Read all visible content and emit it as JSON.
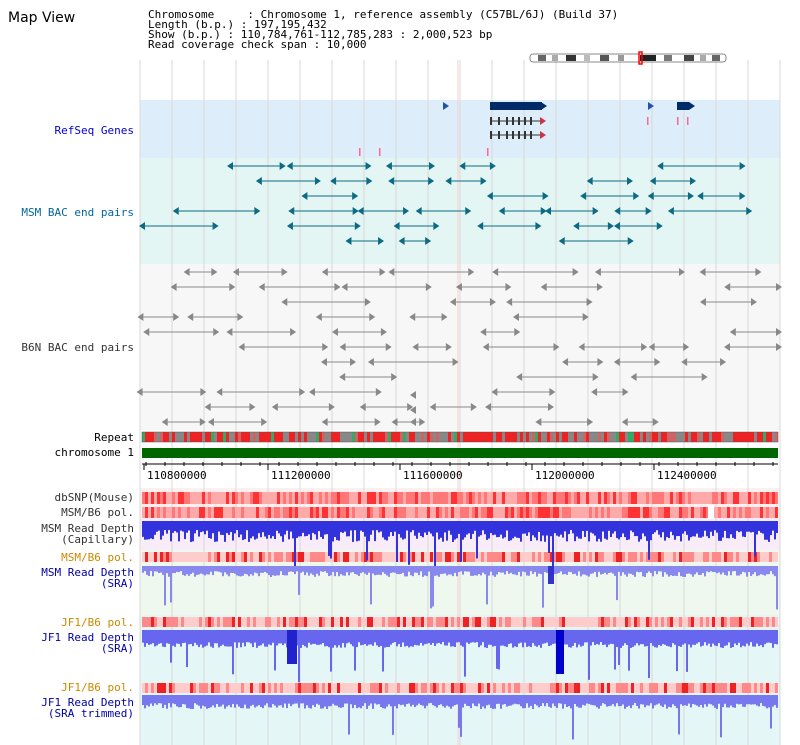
{
  "page": {
    "title": "Map View",
    "info": {
      "chromosome": "Chromosome     : Chromosome 1, reference assembly (C57BL/6J) (Build 37)",
      "length": "Length (b.p.) : 197,195,432",
      "show": "Show (b.p.) : 110,784,761-112,785,283 : 2,000,523 bp",
      "coverage": "Read coverage check span : 10,000"
    }
  },
  "tracks": {
    "refseq": {
      "label": "RefSeq Genes",
      "color": "#0000cc"
    },
    "msm_bac": {
      "label": "MSM BAC end pairs",
      "color": "#006699"
    },
    "b6n_bac": {
      "label": "B6N BAC end pairs",
      "color": "#333333"
    },
    "repeat": {
      "label": "Repeat",
      "color": "#000000"
    },
    "chromosome": {
      "label": "chromosome 1",
      "color": "#000000"
    },
    "dbsnp": {
      "label": "dbSNP(Mouse)",
      "color": "#333333"
    },
    "msm_b6_pol_1": {
      "label": "MSM/B6 pol.",
      "color": "#333333"
    },
    "msm_depth_cap": {
      "label1": "MSM Read Depth",
      "label2": "(Capillary)",
      "color": "#333333"
    },
    "msm_b6_pol_2": {
      "label": "MSM/B6 pol.",
      "color": "#cc8800"
    },
    "msm_depth_sra": {
      "label1": "MSM Read Depth",
      "label2": "(SRA)",
      "color": "#0000aa"
    },
    "jf1_b6_pol_1": {
      "label": "JF1/B6 pol.",
      "color": "#cc8800"
    },
    "jf1_depth_sra": {
      "label1": "JF1 Read Depth",
      "label2": "(SRA)",
      "color": "#0000aa"
    },
    "jf1_b6_pol_2": {
      "label": "JF1/B6 pol.",
      "color": "#cc8800"
    },
    "jf1_depth_trim": {
      "label1": "JF1 Read Depth",
      "label2": "(SRA trimmed)",
      "color": "#0000aa"
    }
  },
  "axis": {
    "ticks": [
      "110800000",
      "111200000",
      "111600000",
      "112000000",
      "112400000"
    ]
  }
}
